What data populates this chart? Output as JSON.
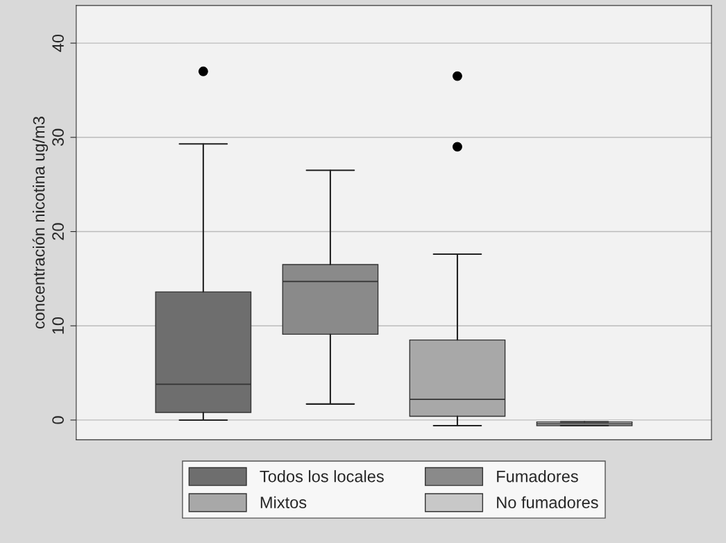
{
  "chart_data": {
    "type": "box",
    "ylabel": "concentración nicotina ug/m3",
    "categories": [
      null
    ],
    "series": [
      {
        "name": "Todos los locales",
        "color": "#6e6e6e",
        "boxes": [
          {
            "low": 0,
            "q1": 0.8,
            "median": 3.8,
            "q3": 13.6,
            "high": 29.3,
            "outliers": [
              37
            ]
          }
        ]
      },
      {
        "name": "Fumadores",
        "color": "#8a8a8a",
        "boxes": [
          {
            "low": 1.7,
            "q1": 9.1,
            "median": 14.7,
            "q3": 16.5,
            "high": 26.5
          }
        ]
      },
      {
        "name": "Mixtos",
        "color": "#a8a8a8",
        "boxes": [
          {
            "low": -0.6,
            "q1": 0.4,
            "median": 2.2,
            "q3": 8.5,
            "high": 17.6,
            "outliers": [
              36.5,
              29
            ]
          }
        ]
      },
      {
        "name": "No fumadores",
        "color": "#c8c8c8",
        "boxes": [
          {
            "low": -0.6,
            "q1": -0.6,
            "median": -0.4,
            "q3": -0.2,
            "high": -0.2
          }
        ]
      }
    ],
    "ylim": [
      -2.1,
      44
    ],
    "yticks": [
      0,
      10,
      20,
      30,
      40
    ],
    "grid": "y",
    "legend": "bottom"
  }
}
